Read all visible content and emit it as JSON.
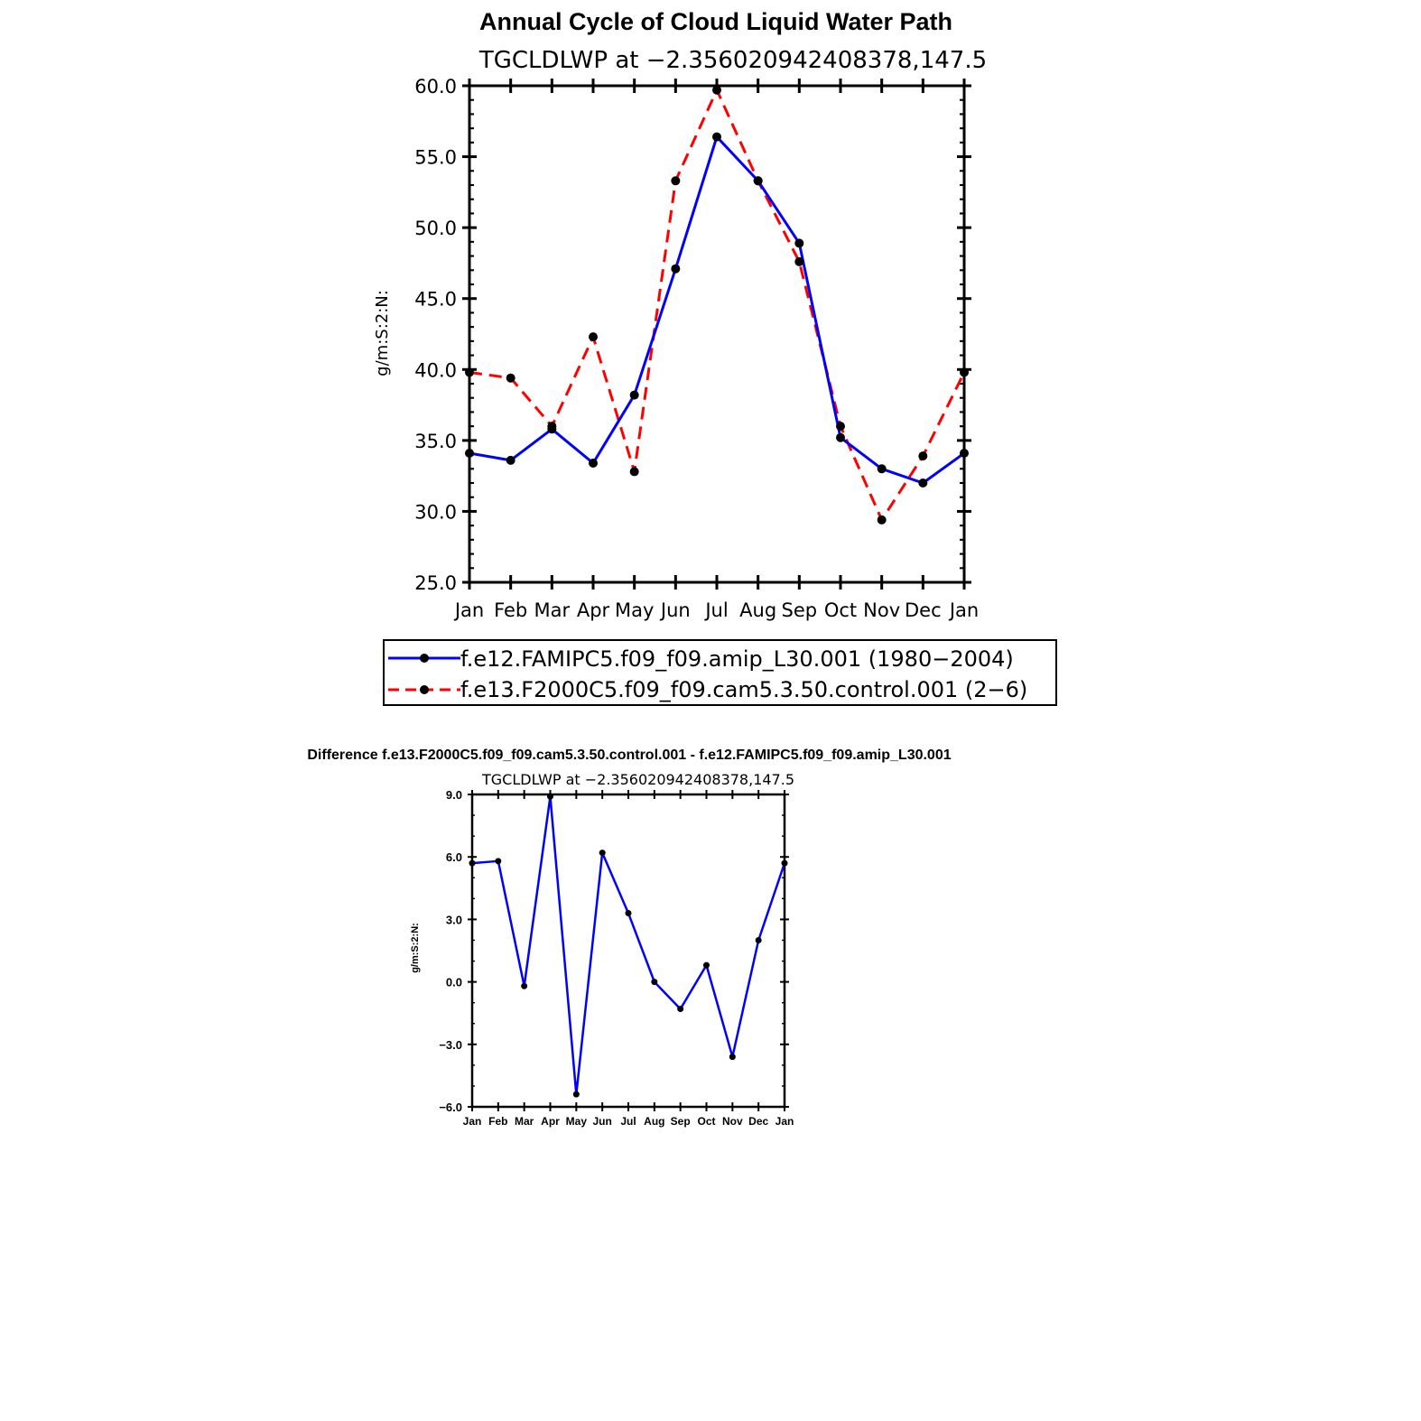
{
  "chart_data": [
    {
      "type": "line",
      "title": "Annual Cycle of Cloud Liquid Water Path",
      "subtitle": "TGCLDLWP at −2.356020942408378,147.5",
      "ylabel": "g/m:S:2:N:",
      "xlabel": "",
      "categories": [
        "Jan",
        "Feb",
        "Mar",
        "Apr",
        "May",
        "Jun",
        "Jul",
        "Aug",
        "Sep",
        "Oct",
        "Nov",
        "Dec",
        "Jan"
      ],
      "ylim": [
        25.0,
        60.0
      ],
      "yticks": [
        "25.0",
        "30.0",
        "35.0",
        "40.0",
        "45.0",
        "50.0",
        "55.0",
        "60.0"
      ],
      "grid": false,
      "legend_position": "bottom",
      "series": [
        {
          "name": "f.e12.FAMIPC5.f09_f09.amip_L30.001 (1980−2004)",
          "color": "#0000ff",
          "style": "solid",
          "values": [
            34.1,
            33.6,
            35.8,
            33.4,
            38.2,
            47.1,
            56.4,
            53.3,
            48.9,
            35.2,
            33.0,
            32.0,
            34.1
          ]
        },
        {
          "name": "f.e13.F2000C5.f09_f09.cam5.3.50.control.001 (2−6)",
          "color": "#ff0000",
          "style": "dashed",
          "values": [
            39.8,
            39.4,
            36.0,
            42.3,
            32.8,
            53.3,
            59.7,
            53.3,
            47.6,
            36.0,
            29.4,
            33.9,
            39.8
          ]
        }
      ]
    },
    {
      "type": "line",
      "title": "Difference f.e13.F2000C5.f09_f09.cam5.3.50.control.001 - f.e12.FAMIPC5.f09_f09.amip_L30.001",
      "subtitle": "TGCLDLWP at −2.356020942408378,147.5",
      "ylabel": "g/m:S:2:N:",
      "xlabel": "",
      "categories": [
        "Jan",
        "Feb",
        "Mar",
        "Apr",
        "May",
        "Jun",
        "Jul",
        "Aug",
        "Sep",
        "Oct",
        "Nov",
        "Dec",
        "Jan"
      ],
      "ylim": [
        -6.0,
        9.0
      ],
      "yticks": [
        "−6.0",
        "−3.0",
        "0.0",
        "3.0",
        "6.0",
        "9.0"
      ],
      "grid": false,
      "series": [
        {
          "name": "difference",
          "color": "#0000ff",
          "style": "solid",
          "values": [
            5.7,
            5.8,
            -0.2,
            8.9,
            -5.4,
            6.2,
            3.3,
            0.0,
            -1.3,
            0.8,
            -3.6,
            2.0,
            5.7
          ]
        }
      ]
    }
  ]
}
